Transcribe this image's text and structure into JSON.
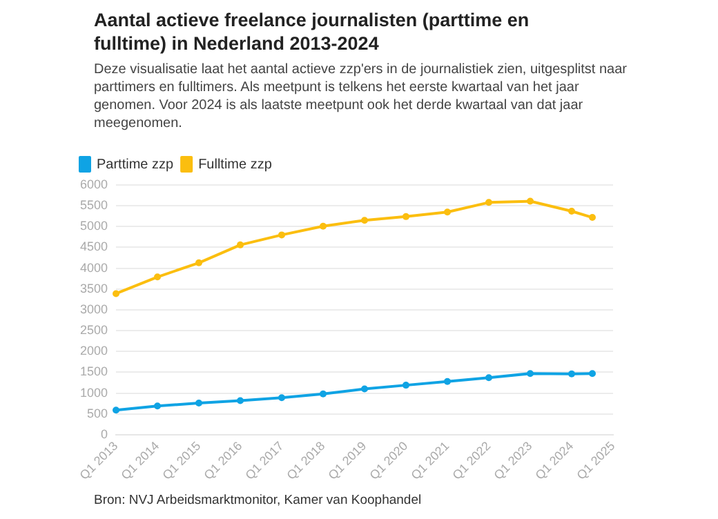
{
  "chart_data": {
    "type": "line",
    "title": "Aantal actieve freelance journalisten (parttime en fulltime) in Nederland 2013-2024",
    "subtitle": "Deze visualisatie laat het aantal actieve zzp'ers in de journalistiek zien, uitgesplitst naar parttimers en fulltimers. Als meetpunt is telkens het eerste kwartaal van het jaar genomen. Voor 2024 is als laatste meetpunt ook het derde kwartaal van dat jaar meegenomen.",
    "categories": [
      "Q1 2013",
      null,
      "Q1 2014",
      null,
      "Q1 2015",
      null,
      "Q1 2016",
      null,
      "Q1 2017",
      null,
      "Q1 2018",
      null,
      "Q1 2019",
      null,
      "Q1 2020",
      null,
      "Q1 2021",
      null,
      "Q1 2022",
      null,
      "Q1 2023",
      null,
      "Q1 2024",
      null,
      "Q1 2025"
    ],
    "series": [
      {
        "name": "Parttime zzp",
        "color": "#0fa3e4",
        "values": [
          590,
          null,
          690,
          null,
          760,
          null,
          820,
          null,
          890,
          null,
          980,
          null,
          1100,
          null,
          1190,
          null,
          1280,
          null,
          1370,
          null,
          1470,
          null,
          1460,
          1470,
          null
        ]
      },
      {
        "name": "Fulltime zzp",
        "color": "#fbbe0f",
        "values": [
          3390,
          null,
          3790,
          null,
          4130,
          null,
          4560,
          null,
          4800,
          null,
          5010,
          null,
          5150,
          null,
          5240,
          null,
          5350,
          null,
          5580,
          null,
          5610,
          null,
          5370,
          5220,
          null
        ]
      }
    ],
    "ylim": [
      0,
      6000
    ],
    "yticks": [
      0,
      500,
      1000,
      1500,
      2000,
      2500,
      3000,
      3500,
      4000,
      4500,
      5000,
      5500,
      6000
    ],
    "grid": "y",
    "legend": "top left",
    "marker": "circle",
    "line_style": "solid",
    "annotations": [
      "Bron: NVJ Arbeidsmarktmonitor, Kamer van Koophandel"
    ]
  }
}
